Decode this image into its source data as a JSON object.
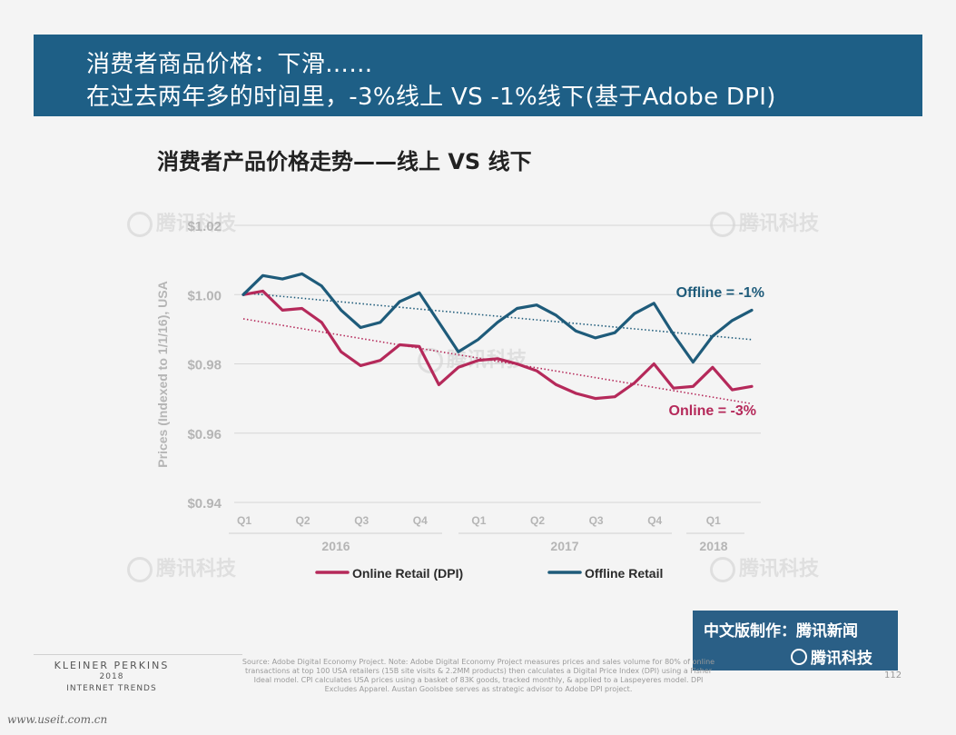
{
  "header": {
    "line1": "消费者商品价格：下滑……",
    "line2": "在过去两年多的时间里，-3%线上 VS  -1%线下(基于Adobe DPI)"
  },
  "chart_data": {
    "type": "line",
    "title": "消费者产品价格走势——线上 VS 线下",
    "ylabel": "Prices (Indexed to 1/1/16), USA",
    "ylim": [
      0.94,
      1.02
    ],
    "yticks": [
      "$0.94",
      "$0.96",
      "$0.98",
      "$1.00",
      "$1.02"
    ],
    "ytick_values": [
      0.94,
      0.96,
      0.98,
      1.0,
      1.02
    ],
    "quarter_labels": [
      "Q1",
      "Q2",
      "Q3",
      "Q4",
      "Q1",
      "Q2",
      "Q3",
      "Q4",
      "Q1"
    ],
    "year_labels": [
      "2016",
      "2017",
      "2018"
    ],
    "legend_position": "bottom",
    "series": [
      {
        "name": "Online Retail (DPI)",
        "color": "#b5295a",
        "values": [
          1.0,
          1.001,
          0.9955,
          0.996,
          0.992,
          0.9835,
          0.9795,
          0.981,
          0.9855,
          0.985,
          0.974,
          0.979,
          0.981,
          0.9815,
          0.98,
          0.978,
          0.974,
          0.9715,
          0.97,
          0.9705,
          0.9745,
          0.98,
          0.973,
          0.9735,
          0.979,
          0.9725,
          0.9735
        ],
        "trend": [
          0.993,
          0.9685
        ],
        "annotation": "Online = -3%"
      },
      {
        "name": "Offline Retail",
        "color": "#1e5b7a",
        "values": [
          1.0,
          1.0055,
          1.0045,
          1.006,
          1.0025,
          0.9955,
          0.9905,
          0.992,
          0.998,
          1.0005,
          0.992,
          0.9835,
          0.987,
          0.992,
          0.996,
          0.997,
          0.994,
          0.9895,
          0.9875,
          0.989,
          0.9945,
          0.9975,
          0.9885,
          0.9805,
          0.988,
          0.9925,
          0.9955
        ],
        "trend": [
          1.0005,
          0.987
        ],
        "annotation": "Offline = -1%"
      }
    ]
  },
  "watermark": {
    "text": "腾讯科技"
  },
  "credit": {
    "row1": "中文版制作：腾讯新闻",
    "row2": "腾讯科技"
  },
  "footer": {
    "brand_line1": "KLEINER PERKINS",
    "brand_line2": "2018",
    "brand_line3": "INTERNET TRENDS",
    "source": "Source: Adobe Digital Economy Project. Note: Adobe Digital Economy Project measures prices and sales volume for 80% of online transactions at top 100 USA retailers (15B site visits & 2.2MM products) then calculates a Digital Price Index (DPI) using a Fisher Ideal model. CPI calculates USA prices using a basket of 83K goods, tracked monthly, & applied to a Laspeyeres model. DPI Excludes Apparel. Austan Goolsbee serves as strategic advisor to Adobe DPI project.",
    "page": "112",
    "site": "www.useit.com.cn"
  }
}
